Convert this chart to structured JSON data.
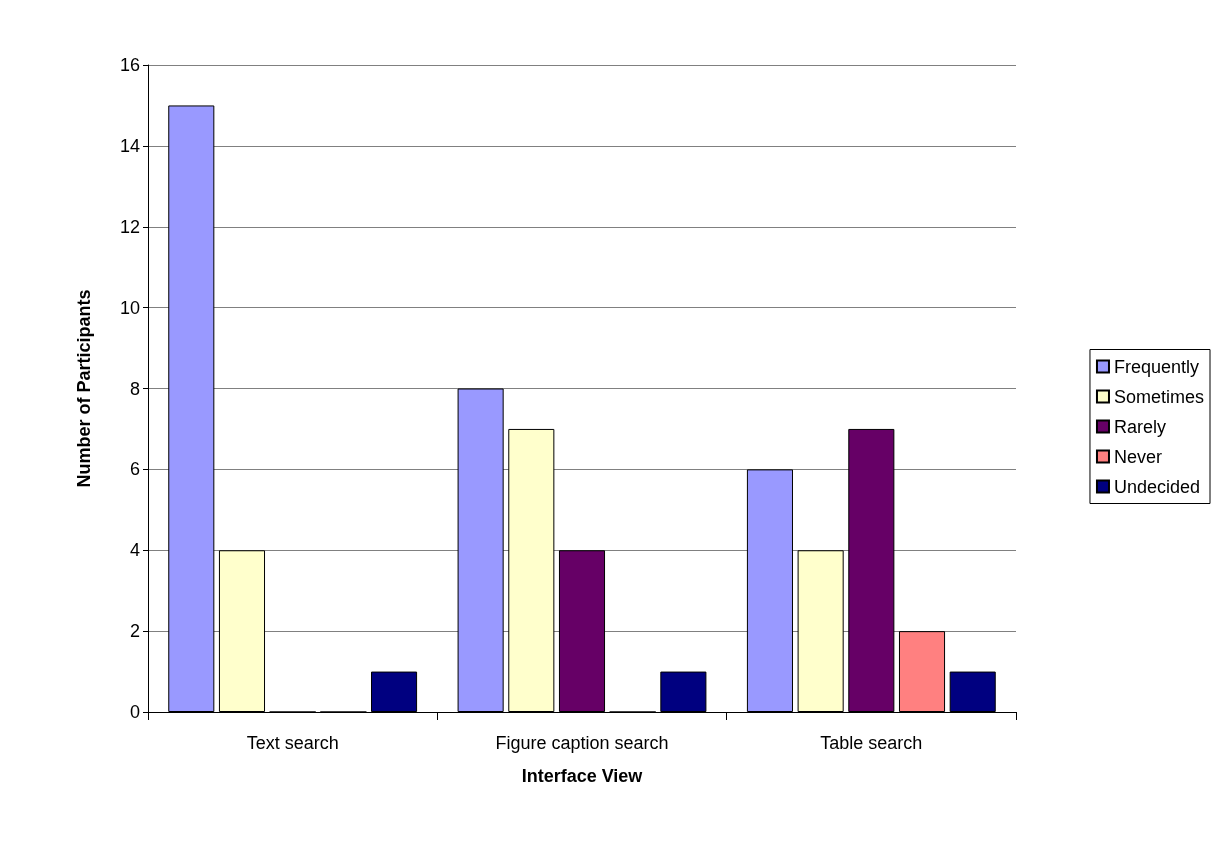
{
  "chart_data": {
    "type": "bar",
    "xlabel": "Interface View",
    "ylabel": "Number of Participants",
    "categories": [
      "Text search",
      "Figure caption search",
      "Table search"
    ],
    "series": [
      {
        "name": "Frequently",
        "color": "#9999ff",
        "values": [
          15,
          8,
          6
        ]
      },
      {
        "name": "Sometimes",
        "color": "#ffffcc",
        "values": [
          4,
          7,
          4
        ]
      },
      {
        "name": "Rarely",
        "color": "#660066",
        "values": [
          0,
          4,
          7
        ]
      },
      {
        "name": "Never",
        "color": "#ff8080",
        "values": [
          0,
          0,
          2
        ]
      },
      {
        "name": "Undecided",
        "color": "#000080",
        "values": [
          1,
          1,
          1
        ]
      }
    ],
    "ylim": [
      0,
      16
    ],
    "yticks": [
      0,
      2,
      4,
      6,
      8,
      10,
      12,
      14,
      16
    ],
    "grid": "y",
    "legend": "right"
  }
}
